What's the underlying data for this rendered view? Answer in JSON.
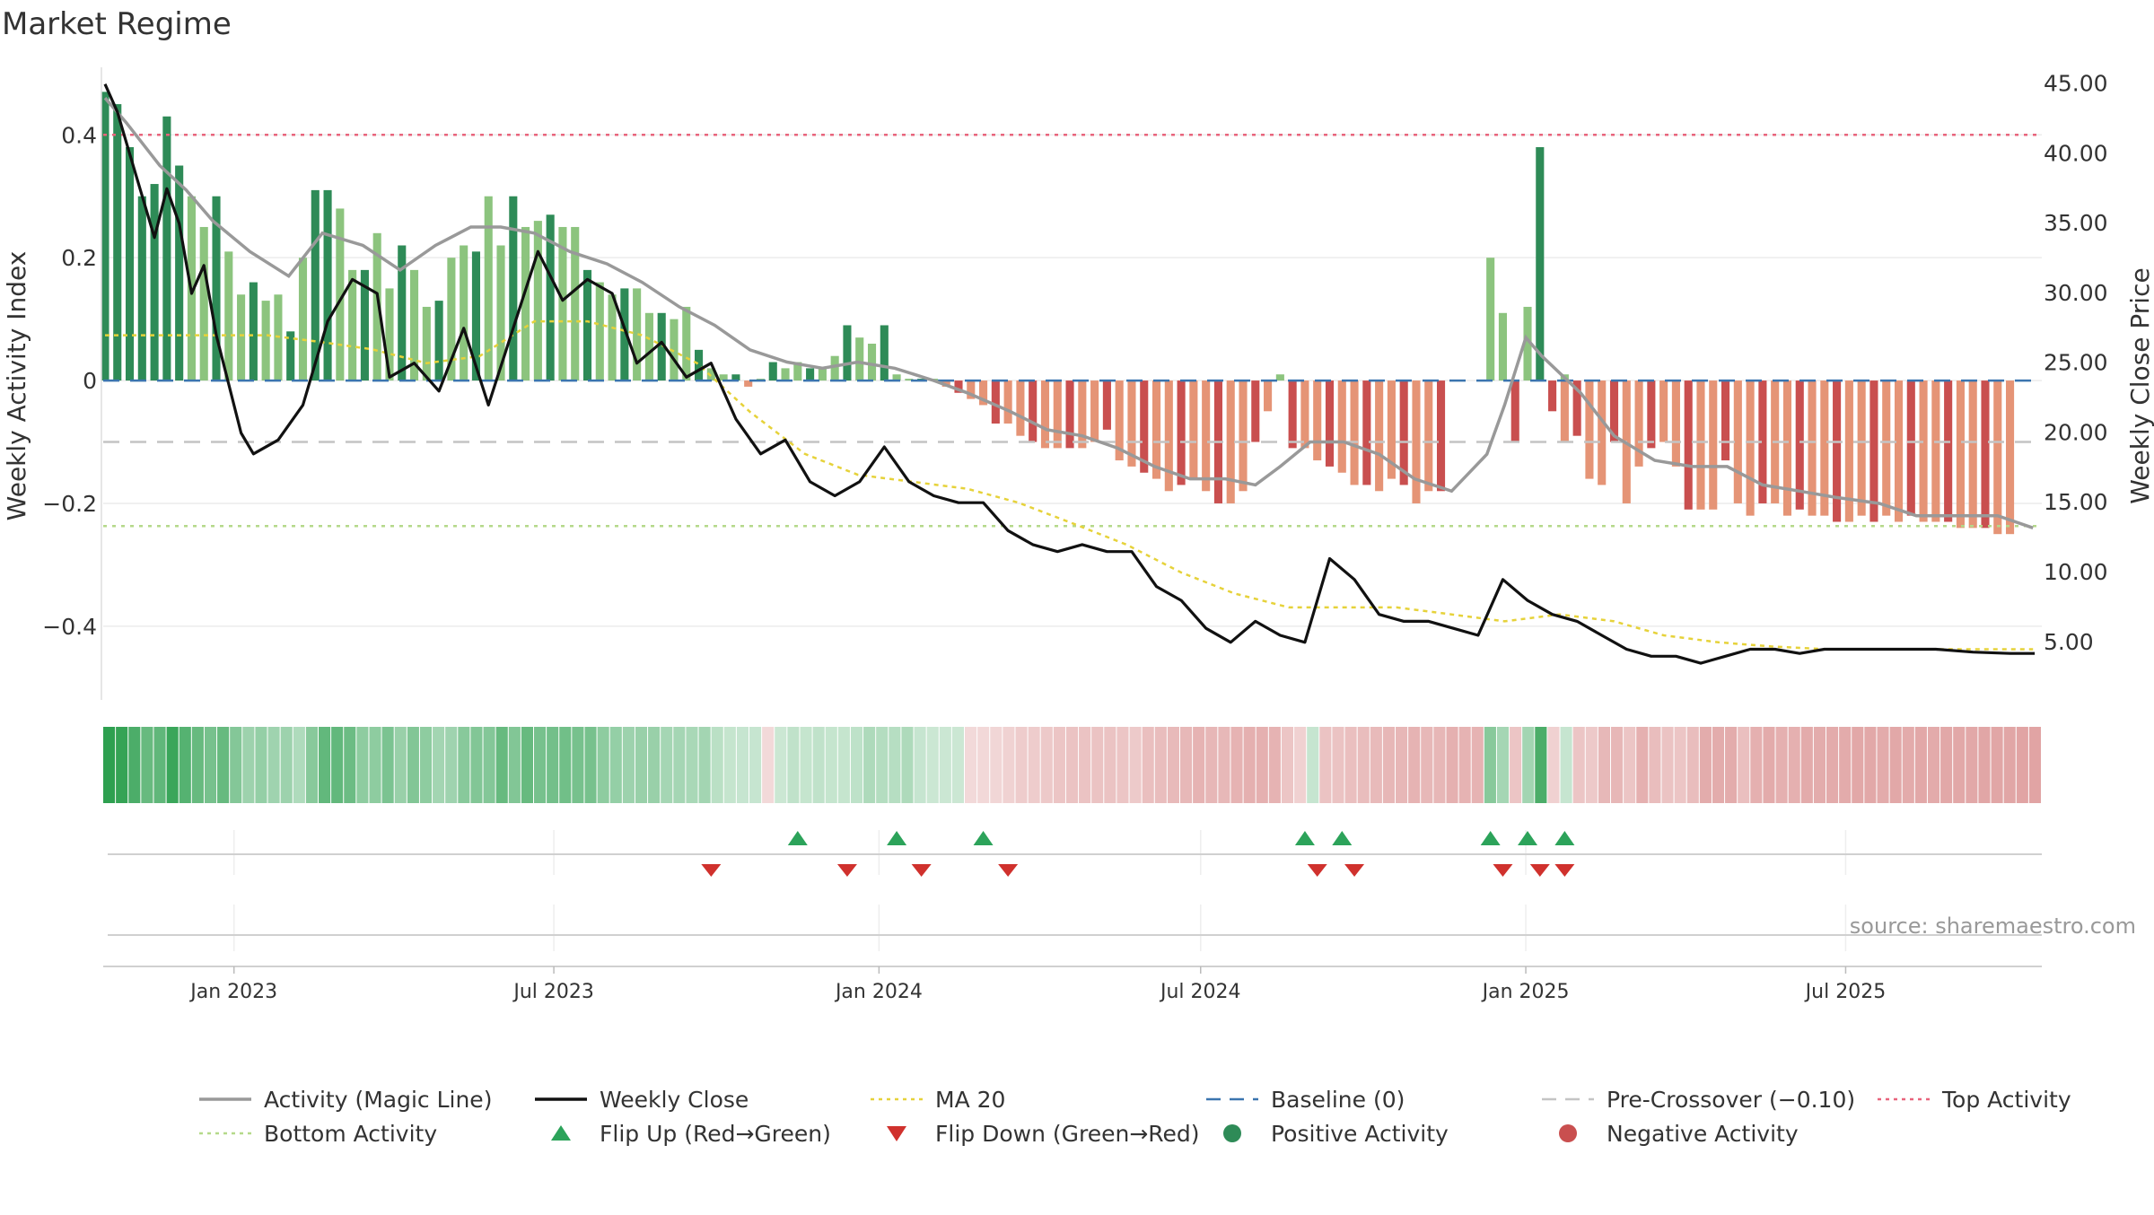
{
  "title": "Market Regime",
  "source_note": "source: sharemaestro.com",
  "chart_data": {
    "type": "bar",
    "title": "Market Regime",
    "left_axis": {
      "label": "Weekly Activity Index",
      "range": [
        -0.52,
        0.51
      ],
      "ticks": [
        0.4,
        0.2,
        0,
        -0.2,
        -0.4
      ],
      "tick_labels": [
        "0.4",
        "0.2",
        "0",
        "−0.2",
        "−0.4"
      ]
    },
    "right_axis": {
      "label": "Weekly Close Price",
      "range": [
        0.87,
        46.2
      ],
      "ticks": [
        5,
        10,
        15,
        20,
        25,
        30,
        35,
        40,
        45
      ],
      "tick_labels": [
        "5.00",
        "10.00",
        "15.00",
        "20.00",
        "25.00",
        "30.00",
        "35.00",
        "40.00",
        "45.00"
      ]
    },
    "x_axis": {
      "type": "date",
      "range": [
        "2022-10-19",
        "2025-10-20"
      ],
      "ticks": [
        "2023-01-01",
        "2023-07-01",
        "2024-01-01",
        "2024-07-01",
        "2025-01-01",
        "2025-07-01"
      ],
      "tick_labels": [
        "Jan 2023",
        "Jul 2023",
        "Jan 2024",
        "Jul 2024",
        "Jan 2025",
        "Jul 2025"
      ]
    },
    "reference_lines": {
      "top_activity": 0.4,
      "baseline": 0,
      "pre_crossover": -0.1,
      "bottom_activity": -0.237
    },
    "colors": {
      "strong_positive": "#2e8b57",
      "weak_positive": "#8cc47e",
      "strong_negative": "#c94f4f",
      "weak_negative": "#e59476",
      "magic_line": "#999999",
      "close": "#111111",
      "ma20": "#e6d23a",
      "baseline": "#3b75af",
      "pre_crossover": "#c4c4c4",
      "top_activity": "#e8647c",
      "bottom_activity": "#b5d98a",
      "flip_up": "#2ca35a",
      "flip_down": "#d0312d"
    },
    "series": [
      {
        "name": "Activity (Magic Line)",
        "key": "magic_line",
        "points": [
          [
            "2022-10-20",
            0.46
          ],
          [
            "2022-11-01",
            0.42
          ],
          [
            "2022-11-20",
            0.35
          ],
          [
            "2022-12-05",
            0.31
          ],
          [
            "2022-12-20",
            0.26
          ],
          [
            "2023-01-10",
            0.21
          ],
          [
            "2023-02-01",
            0.17
          ],
          [
            "2023-02-20",
            0.24
          ],
          [
            "2023-03-15",
            0.22
          ],
          [
            "2023-04-05",
            0.18
          ],
          [
            "2023-04-25",
            0.22
          ],
          [
            "2023-05-15",
            0.25
          ],
          [
            "2023-06-01",
            0.25
          ],
          [
            "2023-06-20",
            0.24
          ],
          [
            "2023-07-10",
            0.21
          ],
          [
            "2023-07-31",
            0.19
          ],
          [
            "2023-08-20",
            0.16
          ],
          [
            "2023-09-10",
            0.12
          ],
          [
            "2023-09-30",
            0.09
          ],
          [
            "2023-10-20",
            0.05
          ],
          [
            "2023-11-10",
            0.03
          ],
          [
            "2023-11-30",
            0.02
          ],
          [
            "2023-12-20",
            0.03
          ],
          [
            "2024-01-10",
            0.02
          ],
          [
            "2024-02-01",
            0.0
          ],
          [
            "2024-02-20",
            -0.02
          ],
          [
            "2024-03-15",
            -0.05
          ],
          [
            "2024-04-05",
            -0.08
          ],
          [
            "2024-04-25",
            -0.09
          ],
          [
            "2024-05-15",
            -0.11
          ],
          [
            "2024-06-05",
            -0.14
          ],
          [
            "2024-06-25",
            -0.16
          ],
          [
            "2024-07-15",
            -0.16
          ],
          [
            "2024-08-01",
            -0.17
          ],
          [
            "2024-08-15",
            -0.14
          ],
          [
            "2024-09-01",
            -0.1
          ],
          [
            "2024-09-20",
            -0.1
          ],
          [
            "2024-10-10",
            -0.12
          ],
          [
            "2024-10-30",
            -0.16
          ],
          [
            "2024-11-20",
            -0.18
          ],
          [
            "2024-12-10",
            -0.12
          ],
          [
            "2024-12-20",
            -0.04
          ],
          [
            "2025-01-01",
            0.07
          ],
          [
            "2025-01-10",
            0.04
          ],
          [
            "2025-02-01",
            -0.02
          ],
          [
            "2025-02-20",
            -0.09
          ],
          [
            "2025-03-15",
            -0.13
          ],
          [
            "2025-04-05",
            -0.14
          ],
          [
            "2025-04-25",
            -0.14
          ],
          [
            "2025-05-15",
            -0.17
          ],
          [
            "2025-06-05",
            -0.18
          ],
          [
            "2025-06-25",
            -0.19
          ],
          [
            "2025-07-20",
            -0.2
          ],
          [
            "2025-08-10",
            -0.22
          ],
          [
            "2025-09-01",
            -0.22
          ],
          [
            "2025-09-25",
            -0.22
          ],
          [
            "2025-10-15",
            -0.24
          ]
        ]
      },
      {
        "name": "Weekly Close",
        "key": "weekly_close",
        "points": [
          [
            "2022-10-20",
            45.0
          ],
          [
            "2022-10-27",
            43.0
          ],
          [
            "2022-11-03",
            40.0
          ],
          [
            "2022-11-10",
            37.0
          ],
          [
            "2022-11-17",
            34.0
          ],
          [
            "2022-11-24",
            37.5
          ],
          [
            "2022-12-01",
            35.0
          ],
          [
            "2022-12-08",
            30.0
          ],
          [
            "2022-12-15",
            32.0
          ],
          [
            "2022-12-22",
            27.0
          ],
          [
            "2022-12-29",
            23.5
          ],
          [
            "2023-01-05",
            20.0
          ],
          [
            "2023-01-12",
            18.5
          ],
          [
            "2023-01-26",
            19.5
          ],
          [
            "2023-02-09",
            22.0
          ],
          [
            "2023-02-23",
            28.0
          ],
          [
            "2023-03-09",
            31.0
          ],
          [
            "2023-03-23",
            30.0
          ],
          [
            "2023-03-30",
            24.0
          ],
          [
            "2023-04-13",
            25.0
          ],
          [
            "2023-04-27",
            23.0
          ],
          [
            "2023-05-11",
            27.5
          ],
          [
            "2023-05-25",
            22.0
          ],
          [
            "2023-06-08",
            27.5
          ],
          [
            "2023-06-22",
            33.0
          ],
          [
            "2023-07-06",
            29.5
          ],
          [
            "2023-07-20",
            31.0
          ],
          [
            "2023-08-03",
            30.0
          ],
          [
            "2023-08-17",
            25.0
          ],
          [
            "2023-08-31",
            26.5
          ],
          [
            "2023-09-14",
            24.0
          ],
          [
            "2023-09-28",
            25.0
          ],
          [
            "2023-10-12",
            21.0
          ],
          [
            "2023-10-26",
            18.5
          ],
          [
            "2023-11-09",
            19.5
          ],
          [
            "2023-11-23",
            16.5
          ],
          [
            "2023-12-07",
            15.5
          ],
          [
            "2023-12-21",
            16.5
          ],
          [
            "2024-01-04",
            19.0
          ],
          [
            "2024-01-18",
            16.5
          ],
          [
            "2024-02-01",
            15.5
          ],
          [
            "2024-02-15",
            15.0
          ],
          [
            "2024-02-29",
            15.0
          ],
          [
            "2024-03-14",
            13.0
          ],
          [
            "2024-03-28",
            12.0
          ],
          [
            "2024-04-11",
            11.5
          ],
          [
            "2024-04-25",
            12.0
          ],
          [
            "2024-05-09",
            11.5
          ],
          [
            "2024-05-23",
            11.5
          ],
          [
            "2024-06-06",
            9.0
          ],
          [
            "2024-06-20",
            8.0
          ],
          [
            "2024-07-04",
            6.0
          ],
          [
            "2024-07-18",
            5.0
          ],
          [
            "2024-08-01",
            6.5
          ],
          [
            "2024-08-15",
            5.5
          ],
          [
            "2024-08-29",
            5.0
          ],
          [
            "2024-09-12",
            11.0
          ],
          [
            "2024-09-26",
            9.5
          ],
          [
            "2024-10-10",
            7.0
          ],
          [
            "2024-10-24",
            6.5
          ],
          [
            "2024-11-07",
            6.5
          ],
          [
            "2024-11-21",
            6.0
          ],
          [
            "2024-12-05",
            5.5
          ],
          [
            "2024-12-19",
            9.5
          ],
          [
            "2025-01-02",
            8.0
          ],
          [
            "2025-01-16",
            7.0
          ],
          [
            "2025-01-30",
            6.5
          ],
          [
            "2025-02-13",
            5.5
          ],
          [
            "2025-02-27",
            4.5
          ],
          [
            "2025-03-13",
            4.0
          ],
          [
            "2025-03-27",
            4.0
          ],
          [
            "2025-04-10",
            3.5
          ],
          [
            "2025-04-24",
            4.0
          ],
          [
            "2025-05-08",
            4.5
          ],
          [
            "2025-05-22",
            4.5
          ],
          [
            "2025-06-05",
            4.2
          ],
          [
            "2025-06-19",
            4.5
          ],
          [
            "2025-07-10",
            4.5
          ],
          [
            "2025-07-31",
            4.5
          ],
          [
            "2025-08-21",
            4.5
          ],
          [
            "2025-09-11",
            4.3
          ],
          [
            "2025-10-02",
            4.2
          ],
          [
            "2025-10-16",
            4.2
          ]
        ]
      },
      {
        "name": "MA 20",
        "key": "ma20",
        "points": [
          [
            "2022-10-20",
            27.0
          ],
          [
            "2022-11-20",
            27.0
          ],
          [
            "2022-12-20",
            27.0
          ],
          [
            "2023-01-20",
            27.0
          ],
          [
            "2023-02-20",
            26.5
          ],
          [
            "2023-03-20",
            26.0
          ],
          [
            "2023-04-20",
            25.0
          ],
          [
            "2023-05-20",
            25.5
          ],
          [
            "2023-06-20",
            28.0
          ],
          [
            "2023-07-20",
            28.0
          ],
          [
            "2023-08-20",
            27.0
          ],
          [
            "2023-09-20",
            25.0
          ],
          [
            "2023-10-20",
            21.5
          ],
          [
            "2023-11-20",
            18.5
          ],
          [
            "2023-12-20",
            17.0
          ],
          [
            "2024-01-20",
            16.5
          ],
          [
            "2024-02-20",
            16.0
          ],
          [
            "2024-03-20",
            15.0
          ],
          [
            "2024-04-20",
            13.5
          ],
          [
            "2024-05-20",
            12.0
          ],
          [
            "2024-06-20",
            10.0
          ],
          [
            "2024-07-20",
            8.5
          ],
          [
            "2024-08-20",
            7.5
          ],
          [
            "2024-09-20",
            7.5
          ],
          [
            "2024-10-20",
            7.5
          ],
          [
            "2024-11-20",
            7.0
          ],
          [
            "2024-12-20",
            6.5
          ],
          [
            "2025-01-20",
            7.0
          ],
          [
            "2025-02-20",
            6.5
          ],
          [
            "2025-03-20",
            5.5
          ],
          [
            "2025-04-20",
            5.0
          ],
          [
            "2025-05-20",
            4.7
          ],
          [
            "2025-06-20",
            4.5
          ],
          [
            "2025-07-20",
            4.5
          ],
          [
            "2025-08-20",
            4.5
          ],
          [
            "2025-09-20",
            4.5
          ],
          [
            "2025-10-15",
            4.5
          ]
        ]
      }
    ],
    "activity_bars": {
      "description": "Weekly Activity Index bars; strong/weak pattern encoded as tone codes",
      "segments": [
        {
          "start": "2022-10-20",
          "end": "2023-09-14",
          "values": [
            0.47,
            0.45,
            0.38,
            0.3,
            0.32,
            0.43,
            0.35,
            0.3,
            0.25,
            0.3,
            0.21,
            0.14,
            0.16,
            0.13,
            0.14,
            0.08,
            0.2,
            0.31,
            0.31,
            0.28,
            0.18,
            0.18,
            0.24,
            0.15,
            0.22,
            0.18,
            0.12,
            0.13,
            0.2,
            0.22,
            0.21,
            0.3,
            0.22,
            0.3,
            0.25,
            0.26,
            0.27,
            0.25,
            0.25,
            0.18,
            0.16,
            0.14,
            0.15,
            0.15,
            0.11,
            0.11,
            0.1,
            0.12
          ]
        },
        {
          "start": "2023-09-21",
          "end": "2024-02-01",
          "values": [
            0.05,
            0.02,
            0.01,
            0.01,
            -0.01,
            0.0,
            0.03,
            0.02,
            0.03,
            0.02,
            0.02,
            0.04,
            0.09,
            0.07,
            0.06,
            0.09,
            0.01,
            0.0,
            0.0,
            0.0
          ]
        },
        {
          "start": "2024-02-08",
          "end": "2024-12-05",
          "values": [
            -0.01,
            -0.02,
            -0.03,
            -0.04,
            -0.07,
            -0.07,
            -0.09,
            -0.1,
            -0.11,
            -0.11,
            -0.11,
            -0.11,
            -0.1,
            -0.08,
            -0.13,
            -0.14,
            -0.15,
            -0.16,
            -0.18,
            -0.17,
            -0.16,
            -0.18,
            -0.2,
            -0.2,
            -0.18,
            -0.1,
            -0.05,
            0.01,
            -0.11,
            -0.11,
            -0.13,
            -0.14,
            -0.15,
            -0.17,
            -0.17,
            -0.18,
            -0.16,
            -0.17,
            -0.2,
            -0.18,
            -0.18
          ]
        },
        {
          "start": "2024-12-12",
          "end": "2025-01-16",
          "values": [
            0.2,
            0.11,
            -0.1,
            0.12,
            0.38,
            -0.05,
            0.01
          ]
        },
        {
          "start": "2025-01-23",
          "end": "2025-10-16",
          "values": [
            -0.1,
            -0.09,
            -0.16,
            -0.17,
            -0.1,
            -0.2,
            -0.14,
            -0.11,
            -0.1,
            -0.14,
            -0.21,
            -0.21,
            -0.21,
            -0.13,
            -0.2,
            -0.22,
            -0.2,
            -0.2,
            -0.22,
            -0.21,
            -0.22,
            -0.22,
            -0.23,
            -0.23,
            -0.22,
            -0.23,
            -0.22,
            -0.23,
            -0.22,
            -0.23,
            -0.23,
            -0.23,
            -0.24,
            -0.24,
            -0.24,
            -0.25,
            -0.25
          ]
        }
      ]
    },
    "flip_up_dates": [
      "2023-11-16",
      "2024-01-11",
      "2024-02-29",
      "2024-08-29",
      "2024-09-19",
      "2024-12-12",
      "2025-01-02",
      "2025-01-23"
    ],
    "flip_down_dates": [
      "2023-09-28",
      "2023-12-14",
      "2024-01-25",
      "2024-03-14",
      "2024-09-05",
      "2024-09-26",
      "2024-12-19",
      "2025-01-09",
      "2025-01-23"
    ],
    "legend": {
      "placement": "bottom",
      "items": [
        {
          "label": "Activity (Magic Line)",
          "key": "magic_line",
          "style": "line"
        },
        {
          "label": "Weekly Close",
          "key": "close",
          "style": "line"
        },
        {
          "label": "MA 20",
          "key": "ma20",
          "style": "dotted"
        },
        {
          "label": "Baseline (0)",
          "key": "baseline",
          "style": "dashed"
        },
        {
          "label": "Pre-Crossover (−0.10)",
          "key": "pre_crossover",
          "style": "dashed"
        },
        {
          "label": "Top Activity",
          "key": "top_activity",
          "style": "dotted"
        },
        {
          "label": "Bottom Activity",
          "key": "bottom_activity",
          "style": "dotted"
        },
        {
          "label": "Flip Up (Red→Green)",
          "key": "flip_up",
          "style": "triangle-up"
        },
        {
          "label": "Flip Down (Green→Red)",
          "key": "flip_down",
          "style": "triangle-down"
        },
        {
          "label": "Positive Activity",
          "key": "strong_positive",
          "style": "circle"
        },
        {
          "label": "Negative Activity",
          "key": "strong_negative",
          "style": "circle"
        }
      ]
    }
  }
}
